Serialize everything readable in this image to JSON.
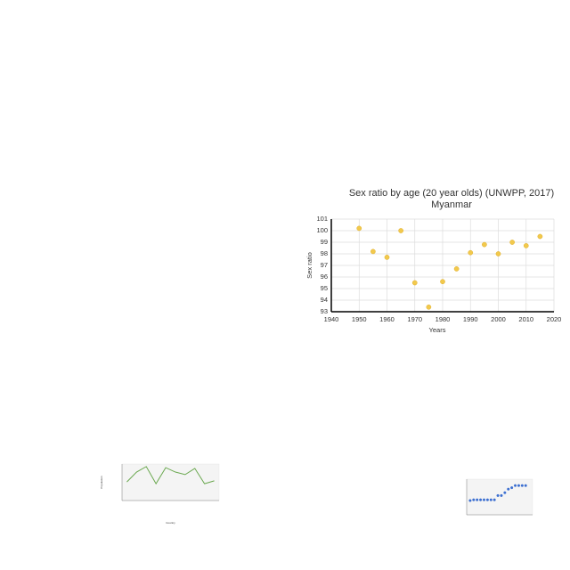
{
  "chart_data": [
    {
      "type": "scatter",
      "title": "Sex ratio by age (20 year olds) (UNWPP, 2017)",
      "subtitle": "Myanmar",
      "x_label": "Years",
      "y_label": "Sex ratio",
      "x": [
        1950,
        1955,
        1960,
        1965,
        1970,
        1975,
        1980,
        1985,
        1990,
        1995,
        2000,
        2005,
        2010,
        2015
      ],
      "values": [
        100.2,
        98.2,
        97.7,
        100.0,
        95.5,
        93.4,
        95.6,
        96.7,
        98.1,
        98.8,
        98.0,
        99.0,
        98.7,
        99.5
      ],
      "color": "#f2c94c",
      "xlim": [
        1940,
        2020
      ],
      "xticks": [
        1940,
        1950,
        1960,
        1970,
        1980,
        1990,
        2000,
        2010,
        2020
      ],
      "ylim": [
        93,
        101
      ],
      "yticks": [
        93,
        94,
        95,
        96,
        97,
        98,
        99,
        100,
        101
      ],
      "grid": true
    },
    {
      "type": "line",
      "x_label": "Country",
      "y_label": "Population",
      "categories": [
        null,
        null,
        null,
        null,
        null,
        null,
        null,
        null,
        null,
        null
      ],
      "values": [
        5100000,
        7800000,
        9300000,
        4600000,
        9000000,
        7800000,
        7100000,
        8800000,
        4600000,
        5400000
      ],
      "color": "#6aa84f",
      "ylim": [
        0,
        10000000
      ],
      "grid": true
    },
    {
      "type": "scatter",
      "x": [
        1950,
        1955,
        1960,
        1965,
        1970,
        1975,
        1980,
        1985,
        1990,
        1995,
        2000,
        2005,
        2010,
        2015,
        2020,
        2025,
        2030
      ],
      "values": [
        4,
        4.2,
        4.2,
        4.2,
        4.2,
        4.2,
        4.2,
        4.2,
        5.4,
        5.4,
        6.2,
        7.2,
        7.6,
        8.2,
        8.2,
        8.2,
        8.2
      ],
      "color": "#3c6fd1",
      "xlim": [
        1945,
        2040
      ],
      "ylim": [
        0,
        10
      ],
      "grid": true
    }
  ]
}
